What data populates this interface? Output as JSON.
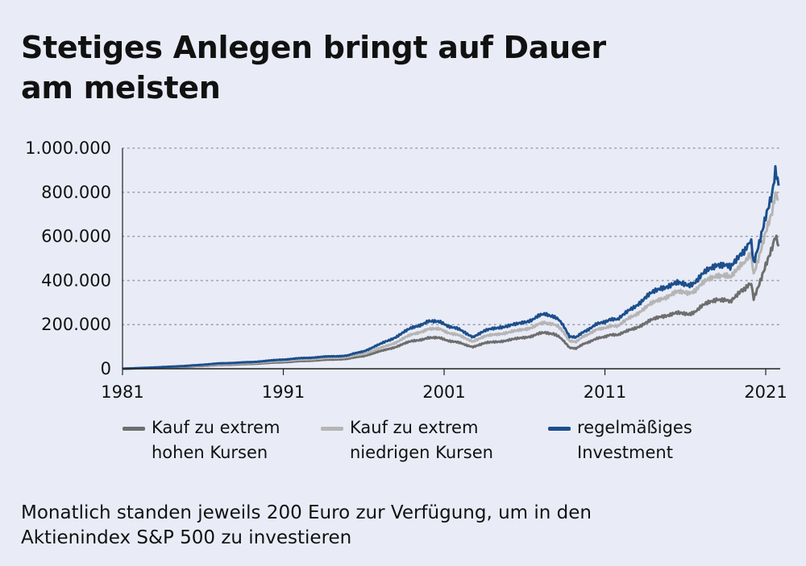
{
  "title_line1": "Stetiges Anlegen bringt auf Dauer",
  "title_line2": "am meisten",
  "footnote_line1": "Monatlich standen jeweils 200 Euro zur Verfügung, um in den",
  "footnote_line2": "Aktienindex S&P 500 zu investieren",
  "legend": [
    {
      "line1": "Kauf zu extrem",
      "line2": "hohen Kursen",
      "color": "#6e6e6e"
    },
    {
      "line1": "Kauf zu extrem",
      "line2": "niedrigen Kursen",
      "color": "#b5b5b5"
    },
    {
      "line1": "regelmäßiges",
      "line2": "Investment",
      "color": "#1c4f8c"
    }
  ],
  "chart_data": {
    "type": "line",
    "title": "Stetiges Anlegen bringt auf Dauer am meisten",
    "xlabel": "",
    "ylabel": "",
    "xlim": [
      1981,
      2021.8
    ],
    "ylim": [
      0,
      1000000
    ],
    "x_ticks": [
      1981,
      1991,
      2001,
      2011,
      2021
    ],
    "x_tick_labels": [
      "1981",
      "1991",
      "2001",
      "2011",
      "2021"
    ],
    "y_ticks": [
      0,
      200000,
      400000,
      600000,
      800000,
      1000000
    ],
    "y_tick_labels": [
      "0",
      "200.000",
      "400.000",
      "600.000",
      "800.000",
      "1.000.000"
    ],
    "grid": "horizontal-dotted",
    "legend_position": "bottom",
    "series": [
      {
        "name": "Kauf zu extrem hohen Kursen",
        "color": "#6e6e6e",
        "x": [
          1981,
          1983,
          1985,
          1987,
          1989,
          1991,
          1993,
          1995,
          1996,
          1997,
          1998,
          1999,
          2000,
          2000.7,
          2001.5,
          2002.3,
          2002.8,
          2003.5,
          2004.5,
          2005.5,
          2006.5,
          2007.3,
          2007.8,
          2008.4,
          2008.8,
          2009.2,
          2009.7,
          2010.5,
          2011.3,
          2011.8,
          2012.5,
          2013.5,
          2014.5,
          2015.5,
          2016.2,
          2017,
          2018,
          2018.8,
          2019.5,
          2020.1,
          2020.25,
          2020.6,
          2021,
          2021.4,
          2021.6,
          2021.8
        ],
        "y": [
          0,
          4000,
          9000,
          17000,
          22000,
          30000,
          38000,
          45000,
          58000,
          78000,
          100000,
          125000,
          140000,
          138000,
          125000,
          110000,
          100000,
          115000,
          125000,
          135000,
          150000,
          165000,
          160000,
          130000,
          95000,
          90000,
          115000,
          135000,
          155000,
          150000,
          175000,
          205000,
          240000,
          250000,
          245000,
          280000,
          320000,
          300000,
          360000,
          380000,
          320000,
          390000,
          470000,
          540000,
          590000,
          555000
        ]
      },
      {
        "name": "Kauf zu extrem niedrigen Kursen",
        "color": "#b5b5b5",
        "x": [
          1981,
          1983,
          1985,
          1987,
          1989,
          1991,
          1993,
          1995,
          1996,
          1997,
          1998,
          1999,
          2000,
          2000.7,
          2001.5,
          2002.3,
          2002.8,
          2003.5,
          2004.5,
          2005.5,
          2006.5,
          2007.3,
          2007.8,
          2008.4,
          2008.8,
          2009.2,
          2009.7,
          2010.5,
          2011.3,
          2011.8,
          2012.5,
          2013.5,
          2014.5,
          2015.5,
          2016.2,
          2017,
          2018,
          2018.8,
          2019.5,
          2020.1,
          2020.25,
          2020.6,
          2021,
          2021.4,
          2021.6,
          2021.8
        ],
        "y": [
          0,
          5000,
          11000,
          20000,
          26000,
          36000,
          45000,
          53000,
          68000,
          92000,
          120000,
          155000,
          180000,
          178000,
          160000,
          140000,
          125000,
          145000,
          160000,
          170000,
          190000,
          210000,
          205000,
          170000,
          125000,
          120000,
          150000,
          175000,
          195000,
          190000,
          230000,
          275000,
          320000,
          345000,
          340000,
          380000,
          430000,
          410000,
          480000,
          510000,
          430000,
          520000,
          620000,
          700000,
          780000,
          765000
        ]
      },
      {
        "name": "regelmäßiges Investment",
        "color": "#1c4f8c",
        "x": [
          1981,
          1983,
          1985,
          1987,
          1989,
          1991,
          1993,
          1995,
          1996,
          1997,
          1998,
          1999,
          2000,
          2000.7,
          2001.5,
          2002.3,
          2002.8,
          2003.5,
          2004.5,
          2005.5,
          2006.5,
          2007.3,
          2007.8,
          2008.4,
          2008.8,
          2009.2,
          2009.7,
          2010.5,
          2011.3,
          2011.8,
          2012.5,
          2013.5,
          2014.5,
          2015.5,
          2016.2,
          2017,
          2018,
          2018.8,
          2019.5,
          2020.1,
          2020.25,
          2020.6,
          2021,
          2021.4,
          2021.6,
          2021.8
        ],
        "y": [
          0,
          6000,
          13000,
          24000,
          30000,
          42000,
          52000,
          60000,
          80000,
          110000,
          145000,
          185000,
          215000,
          210000,
          190000,
          165000,
          145000,
          170000,
          190000,
          200000,
          225000,
          250000,
          240000,
          200000,
          145000,
          140000,
          170000,
          200000,
          225000,
          220000,
          265000,
          320000,
          370000,
          385000,
          375000,
          420000,
          480000,
          455000,
          530000,
          570000,
          480000,
          580000,
          690000,
          780000,
          880000,
          830000
        ]
      }
    ]
  }
}
